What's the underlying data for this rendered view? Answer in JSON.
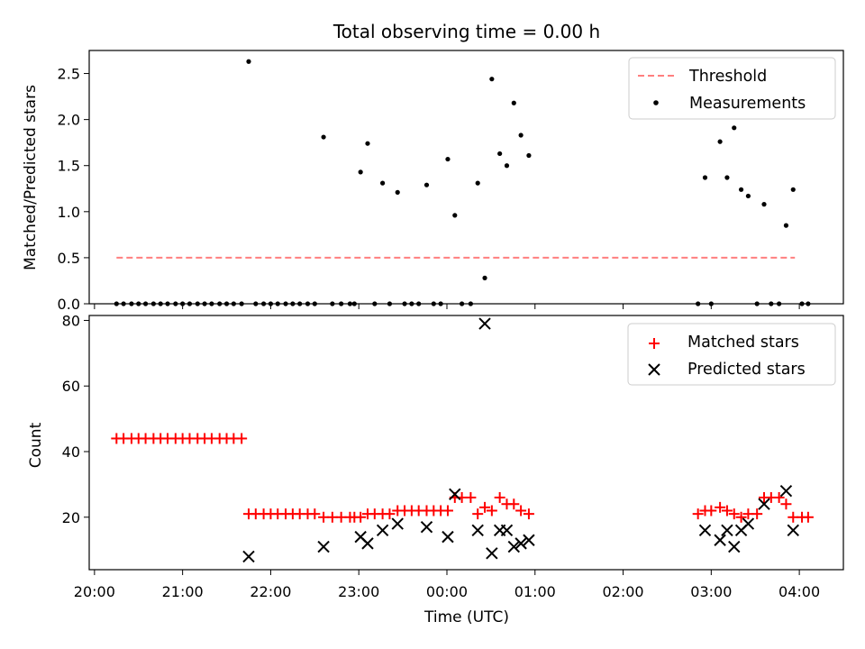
{
  "chart_data": [
    {
      "type": "scatter",
      "title": "Total observing time = 0.00 h",
      "xlabel": "",
      "ylabel": "Matched/Predicted stars",
      "x_unit": "UTC hours (20 = 20:00, 24 = 00:00, 28 = 04:00)",
      "xlim": [
        19.94,
        28.5
      ],
      "ylim": [
        0,
        2.75
      ],
      "yticks": [
        0.0,
        0.5,
        1.0,
        1.5,
        2.0,
        2.5
      ],
      "ytick_labels": [
        "0.0",
        "0.5",
        "1.0",
        "1.5",
        "2.0",
        "2.5"
      ],
      "legend_position": "top-right",
      "threshold": {
        "name": "Threshold",
        "value": 0.5,
        "x_start": 20.25,
        "x_end": 27.95,
        "color": "#ff7f7f",
        "style": "dashed"
      },
      "series": [
        {
          "name": "Measurements",
          "marker": "dot",
          "color": "#000000",
          "points": [
            [
              20.25,
              0
            ],
            [
              20.33,
              0
            ],
            [
              20.42,
              0
            ],
            [
              20.5,
              0
            ],
            [
              20.58,
              0
            ],
            [
              20.67,
              0
            ],
            [
              20.75,
              0
            ],
            [
              20.83,
              0
            ],
            [
              20.92,
              0
            ],
            [
              21.0,
              0
            ],
            [
              21.08,
              0
            ],
            [
              21.17,
              0
            ],
            [
              21.25,
              0
            ],
            [
              21.33,
              0
            ],
            [
              21.42,
              0
            ],
            [
              21.5,
              0
            ],
            [
              21.58,
              0
            ],
            [
              21.67,
              0
            ],
            [
              21.75,
              2.63
            ],
            [
              21.83,
              0
            ],
            [
              21.92,
              0
            ],
            [
              22.0,
              0
            ],
            [
              22.08,
              0
            ],
            [
              22.17,
              0
            ],
            [
              22.25,
              0
            ],
            [
              22.33,
              0
            ],
            [
              22.42,
              0
            ],
            [
              22.5,
              0
            ],
            [
              22.6,
              1.81
            ],
            [
              22.7,
              0
            ],
            [
              22.8,
              0
            ],
            [
              22.9,
              0
            ],
            [
              22.95,
              0
            ],
            [
              23.02,
              1.43
            ],
            [
              23.1,
              1.74
            ],
            [
              23.18,
              0
            ],
            [
              23.27,
              1.31
            ],
            [
              23.35,
              0
            ],
            [
              23.44,
              1.21
            ],
            [
              23.52,
              0
            ],
            [
              23.6,
              0
            ],
            [
              23.68,
              0
            ],
            [
              23.77,
              1.29
            ],
            [
              23.85,
              0
            ],
            [
              23.93,
              0
            ],
            [
              24.01,
              1.57
            ],
            [
              24.09,
              0.96
            ],
            [
              24.17,
              0
            ],
            [
              24.27,
              0
            ],
            [
              24.35,
              1.31
            ],
            [
              24.43,
              0.28
            ],
            [
              24.51,
              2.44
            ],
            [
              24.6,
              1.63
            ],
            [
              24.68,
              1.5
            ],
            [
              24.76,
              2.18
            ],
            [
              24.84,
              1.83
            ],
            [
              24.93,
              1.61
            ],
            [
              26.85,
              0
            ],
            [
              26.93,
              1.37
            ],
            [
              27.0,
              0
            ],
            [
              27.1,
              1.76
            ],
            [
              27.18,
              1.37
            ],
            [
              27.26,
              1.91
            ],
            [
              27.34,
              1.24
            ],
            [
              27.42,
              1.17
            ],
            [
              27.52,
              0
            ],
            [
              27.6,
              1.08
            ],
            [
              27.68,
              0
            ],
            [
              27.77,
              0
            ],
            [
              27.85,
              0.85
            ],
            [
              27.93,
              1.24
            ],
            [
              28.03,
              0
            ],
            [
              28.1,
              0
            ]
          ]
        }
      ]
    },
    {
      "type": "scatter",
      "title": "",
      "xlabel": "Time (UTC)",
      "ylabel": "Count",
      "x_unit": "UTC hours (20 = 20:00, 24 = 00:00, 28 = 04:00)",
      "xlim": [
        19.94,
        28.5
      ],
      "ylim": [
        4.0,
        81.5
      ],
      "yticks": [
        20,
        40,
        60,
        80
      ],
      "ytick_labels": [
        "20",
        "40",
        "60",
        "80"
      ],
      "xticks": [
        20,
        21,
        22,
        23,
        24,
        25,
        26,
        27,
        28
      ],
      "xtick_labels": [
        "20:00",
        "21:00",
        "22:00",
        "23:00",
        "00:00",
        "01:00",
        "02:00",
        "03:00",
        "04:00"
      ],
      "legend_position": "top-right",
      "series": [
        {
          "name": "Matched stars",
          "marker": "plus",
          "color": "#ff0000",
          "points": [
            [
              20.25,
              44
            ],
            [
              20.33,
              44
            ],
            [
              20.42,
              44
            ],
            [
              20.5,
              44
            ],
            [
              20.58,
              44
            ],
            [
              20.67,
              44
            ],
            [
              20.75,
              44
            ],
            [
              20.83,
              44
            ],
            [
              20.92,
              44
            ],
            [
              21.0,
              44
            ],
            [
              21.08,
              44
            ],
            [
              21.17,
              44
            ],
            [
              21.25,
              44
            ],
            [
              21.33,
              44
            ],
            [
              21.42,
              44
            ],
            [
              21.5,
              44
            ],
            [
              21.58,
              44
            ],
            [
              21.67,
              44
            ],
            [
              21.75,
              21
            ],
            [
              21.83,
              21
            ],
            [
              21.92,
              21
            ],
            [
              22.0,
              21
            ],
            [
              22.08,
              21
            ],
            [
              22.17,
              21
            ],
            [
              22.25,
              21
            ],
            [
              22.33,
              21
            ],
            [
              22.42,
              21
            ],
            [
              22.5,
              21
            ],
            [
              22.6,
              20
            ],
            [
              22.7,
              20
            ],
            [
              22.8,
              20
            ],
            [
              22.9,
              20
            ],
            [
              22.95,
              20
            ],
            [
              23.02,
              20
            ],
            [
              23.1,
              21
            ],
            [
              23.18,
              21
            ],
            [
              23.27,
              21
            ],
            [
              23.35,
              21
            ],
            [
              23.44,
              22
            ],
            [
              23.52,
              22
            ],
            [
              23.6,
              22
            ],
            [
              23.68,
              22
            ],
            [
              23.77,
              22
            ],
            [
              23.85,
              22
            ],
            [
              23.93,
              22
            ],
            [
              24.01,
              22
            ],
            [
              24.09,
              26
            ],
            [
              24.17,
              26
            ],
            [
              24.27,
              26
            ],
            [
              24.35,
              21
            ],
            [
              24.43,
              23
            ],
            [
              24.51,
              22
            ],
            [
              24.6,
              26
            ],
            [
              24.68,
              24
            ],
            [
              24.76,
              24
            ],
            [
              24.84,
              22
            ],
            [
              24.93,
              21
            ],
            [
              26.85,
              21
            ],
            [
              26.93,
              22
            ],
            [
              27.0,
              22
            ],
            [
              27.1,
              23
            ],
            [
              27.18,
              22
            ],
            [
              27.26,
              21
            ],
            [
              27.34,
              20
            ],
            [
              27.42,
              21
            ],
            [
              27.52,
              21
            ],
            [
              27.6,
              26
            ],
            [
              27.68,
              26
            ],
            [
              27.77,
              26
            ],
            [
              27.85,
              24
            ],
            [
              27.93,
              20
            ],
            [
              28.03,
              20
            ],
            [
              28.1,
              20
            ]
          ]
        },
        {
          "name": "Predicted stars",
          "marker": "x",
          "color": "#000000",
          "points": [
            [
              21.75,
              8
            ],
            [
              22.6,
              11
            ],
            [
              23.02,
              14
            ],
            [
              23.1,
              12
            ],
            [
              23.27,
              16
            ],
            [
              23.44,
              18
            ],
            [
              23.77,
              17
            ],
            [
              24.01,
              14
            ],
            [
              24.09,
              27
            ],
            [
              24.35,
              16
            ],
            [
              24.43,
              79
            ],
            [
              24.51,
              9
            ],
            [
              24.6,
              16
            ],
            [
              24.68,
              16
            ],
            [
              24.76,
              11
            ],
            [
              24.84,
              12
            ],
            [
              24.93,
              13
            ],
            [
              26.93,
              16
            ],
            [
              27.1,
              13
            ],
            [
              27.18,
              16
            ],
            [
              27.26,
              11
            ],
            [
              27.34,
              16
            ],
            [
              27.42,
              18
            ],
            [
              27.6,
              24
            ],
            [
              27.85,
              28
            ],
            [
              27.93,
              16
            ]
          ]
        }
      ]
    }
  ]
}
